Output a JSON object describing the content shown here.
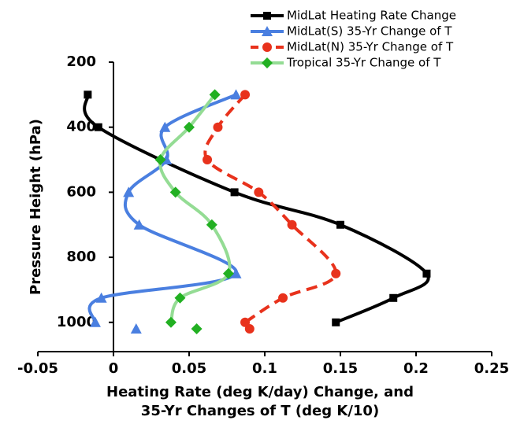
{
  "chart_data": {
    "type": "line",
    "ylabel": "Pressure Height (hPa)",
    "xlabel": [
      "Heating Rate (deg K/day) Change, and",
      "35-Yr Changes of T (deg K/10)"
    ],
    "xlim": [
      -0.05,
      0.25
    ],
    "xticks": [
      -0.05,
      0,
      0.05,
      0.1,
      0.15,
      0.2,
      0.25
    ],
    "ylim": [
      1090,
      200
    ],
    "yticks": [
      200,
      400,
      600,
      800,
      1000
    ],
    "series": [
      {
        "name": "MidLat Heating Rate Change",
        "color": "#000000",
        "marker": "square",
        "dash": false,
        "x": [
          -0.017,
          -0.01,
          0.08,
          0.15,
          0.207,
          0.185,
          0.147
        ],
        "y": [
          300,
          400,
          600,
          700,
          850,
          925,
          1000
        ]
      },
      {
        "name": "MidLat(S) 35-Yr Change of T",
        "color": "#4a7fe0",
        "marker": "triangle",
        "dash": false,
        "x": [
          0.081,
          0.034,
          0.035,
          0.01,
          0.017,
          0.081,
          -0.008,
          -0.012,
          null,
          0.015
        ],
        "y": [
          300,
          400,
          500,
          600,
          700,
          850,
          925,
          1000,
          null,
          1020
        ]
      },
      {
        "name": "MidLat(N) 35-Yr Change of T",
        "color": "#e8321c",
        "marker": "circle",
        "dash": true,
        "x": [
          0.087,
          0.069,
          0.062,
          0.096,
          0.118,
          0.147,
          0.112,
          0.087,
          null,
          0.09
        ],
        "y": [
          300,
          400,
          500,
          600,
          700,
          850,
          925,
          1000,
          null,
          1020
        ]
      },
      {
        "name": "Tropical 35-Yr Change of T",
        "color": "#22b022",
        "line_color": "#94dc94",
        "marker": "diamond",
        "dash": false,
        "x": [
          0.067,
          0.05,
          0.031,
          0.041,
          0.065,
          0.076,
          0.044,
          0.038,
          null,
          0.055
        ],
        "y": [
          300,
          400,
          500,
          600,
          700,
          850,
          925,
          1000,
          null,
          1020
        ]
      }
    ]
  }
}
